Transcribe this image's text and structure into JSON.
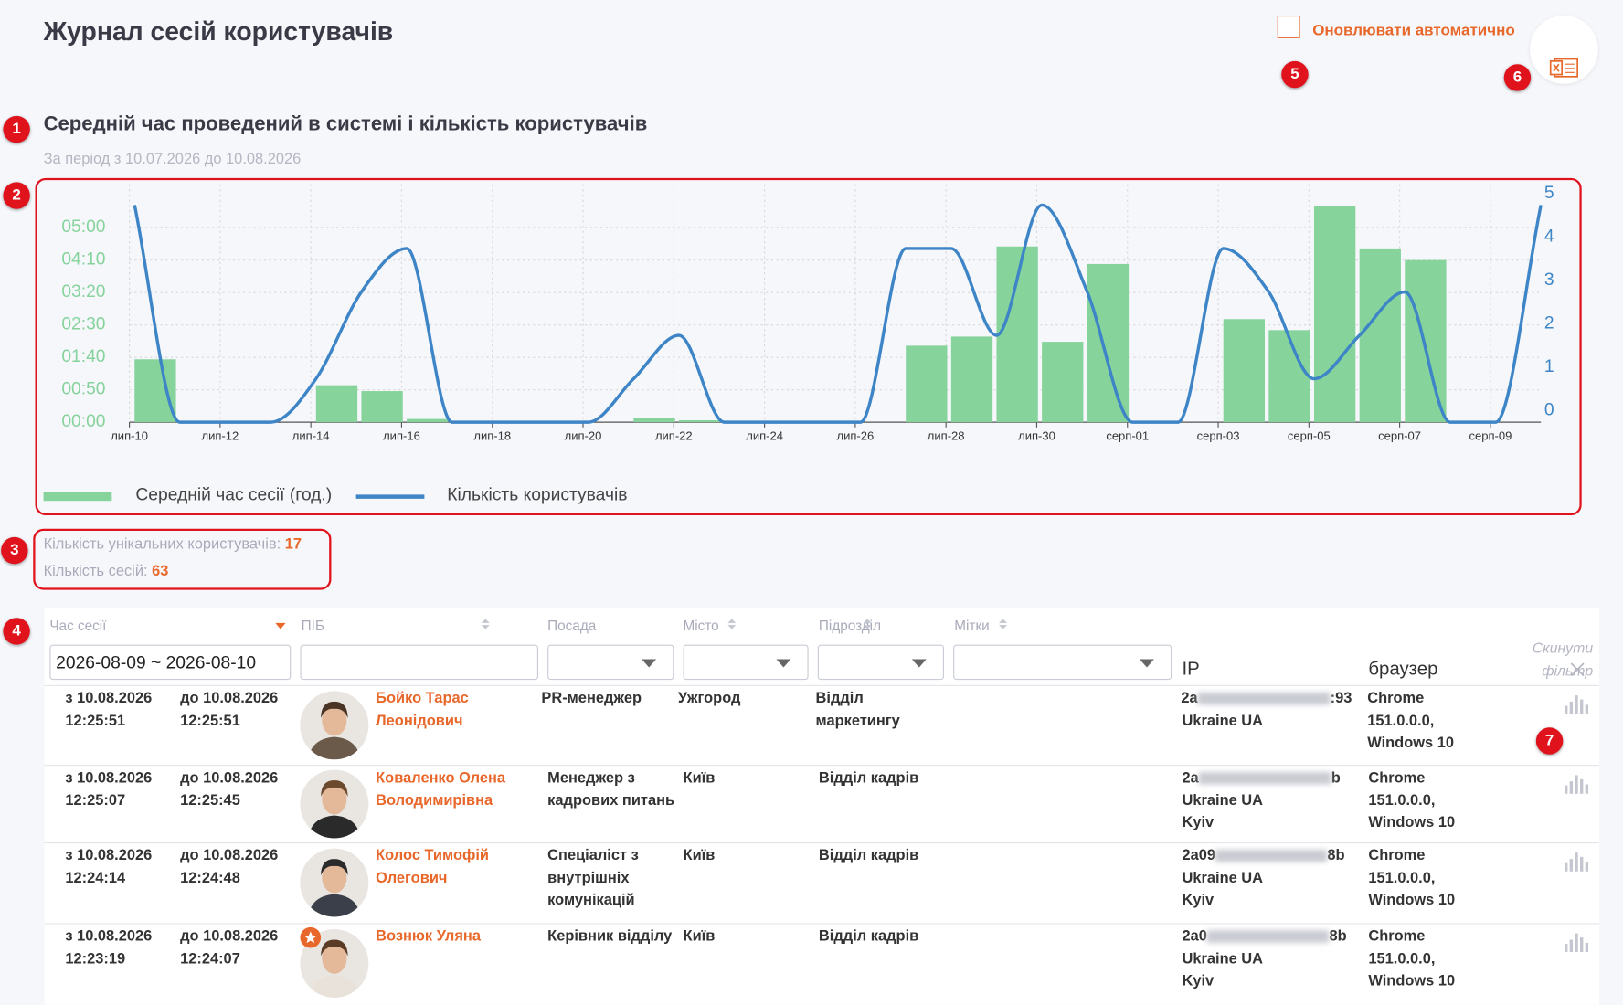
{
  "header": {
    "title": "Журнал сесій користувачів",
    "auto_refresh": "Оновлювати автоматично"
  },
  "markers": [
    1,
    2,
    3,
    4,
    5,
    6,
    7
  ],
  "chart_data": {
    "type": "bar",
    "title": "Середній час проведений в системі і кількість користувачів",
    "subtitle": "За період з 10.07.2026 до 10.08.2026",
    "categories": [
      "лип-10",
      null,
      "лип-12",
      null,
      "лип-14",
      null,
      "лип-16",
      null,
      "лип-18",
      null,
      "лип-20",
      null,
      "лип-22",
      null,
      "лип-24",
      null,
      "лип-26",
      null,
      "лип-28",
      null,
      "лип-30",
      null,
      "серп-01",
      null,
      "серп-03",
      null,
      "серп-05",
      null,
      "серп-07",
      null,
      "серп-09",
      null
    ],
    "series": [
      {
        "name": "Середній час сесії (год.)",
        "type": "bar",
        "color": "#86d39c",
        "values": [
          97,
          0,
          0,
          0,
          57,
          48,
          5,
          0,
          0,
          0,
          0,
          6,
          3,
          0,
          0,
          0,
          0,
          118,
          132,
          271,
          124,
          244,
          0,
          0,
          159,
          142,
          333,
          268,
          250,
          0,
          0,
          0
        ]
      },
      {
        "name": "Кількість користувачів",
        "type": "line",
        "axis": "y2",
        "color": "#3d85c6",
        "values": [
          5,
          0,
          0,
          0,
          1,
          3,
          4,
          0,
          0,
          0,
          0,
          1,
          2,
          0,
          0,
          0,
          0,
          4,
          4,
          2,
          5,
          3,
          0,
          0,
          4,
          3,
          1,
          2,
          3,
          0,
          0,
          5
        ]
      }
    ],
    "ylim": [
      0,
      367
    ],
    "yticks": [
      {
        "value": 0,
        "label": "00:00"
      },
      {
        "value": 50,
        "label": "00:50"
      },
      {
        "value": 100,
        "label": "01:40"
      },
      {
        "value": 150,
        "label": "02:30"
      },
      {
        "value": 200,
        "label": "03:20"
      },
      {
        "value": 250,
        "label": "04:10"
      },
      {
        "value": 300,
        "label": "05:00"
      }
    ],
    "y2lim": [
      0,
      5.48
    ],
    "y2ticks": [
      0,
      1,
      2,
      3,
      4,
      5
    ],
    "grid": true
  },
  "stats": {
    "users_label": "Кількість унікальних користувачів:",
    "users": 17,
    "sessions_label": "Кількість сесій:",
    "sessions": 63
  },
  "table": {
    "columns": [
      "Час сесії",
      "ПІБ",
      "Посада",
      "Місто",
      "Підрозділ",
      "Мітки",
      "IP",
      "браузер"
    ],
    "date_filter": "2026-08-09 ~ 2026-08-10",
    "reset": "Скинути\nфільтр",
    "rows": [
      {
        "from": "з 10.08.2026\n12:25:51",
        "to": "до 10.08.2026\n12:25:51",
        "name": "Бойко Тарас\nЛеонідович",
        "position": "PR-менеджер",
        "city": "Ужгород",
        "department": "Відділ\nмаркетингу",
        "ip": [
          "2a",
          ":93"
        ],
        "location": "Ukraine UA",
        "browser": "Chrome\n151.0.0.0,\nWindows 10"
      },
      {
        "from": "з 10.08.2026\n12:25:07",
        "to": "до 10.08.2026\n12:25:45",
        "name": "Коваленко Олена\nВолодимирівна",
        "position": "Менеджер з\nкадрових питань",
        "city": "Київ",
        "department": "Відділ кадрів",
        "ip": [
          "2a",
          "b"
        ],
        "location": "Ukraine UA\nKyiv",
        "browser": "Chrome\n151.0.0.0,\nWindows 10"
      },
      {
        "from": "з 10.08.2026\n12:24:14",
        "to": "до 10.08.2026\n12:24:48",
        "name": "Колос Тимофій\nОлегович",
        "position": "Спеціаліст з\nвнутрішніх\nкомунікацій",
        "city": "Київ",
        "department": "Відділ кадрів",
        "ip": [
          "2a09",
          "8b"
        ],
        "location": "Ukraine UA\nKyiv",
        "browser": "Chrome\n151.0.0.0,\nWindows 10"
      },
      {
        "from": "з 10.08.2026\n12:23:19",
        "to": "до 10.08.2026\n12:24:07",
        "name": "Вознюк Уляна",
        "position": "Керівник відділу",
        "city": "Київ",
        "department": "Відділ кадрів",
        "ip": [
          "2a0",
          "8b"
        ],
        "location": "Ukraine UA\nKyiv",
        "browser": "Chrome\n151.0.0.0,\nWindows 10"
      }
    ]
  }
}
